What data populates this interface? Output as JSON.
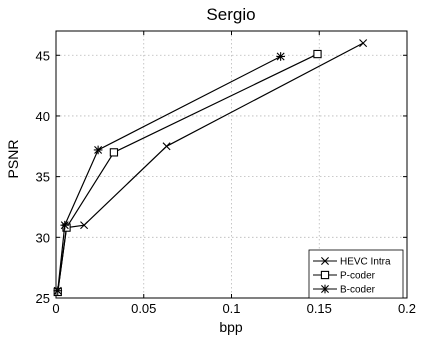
{
  "chart_data": {
    "type": "line",
    "title": "Sergio",
    "xlabel": "bpp",
    "ylabel": "PSNR",
    "xlim": [
      0,
      0.2
    ],
    "ylim": [
      25,
      47
    ],
    "xticks": [
      0,
      0.05,
      0.1,
      0.15,
      0.2
    ],
    "xtick_labels": [
      "0",
      "0.05",
      "0.1",
      "0.15",
      "0.2"
    ],
    "yticks": [
      25,
      30,
      35,
      40,
      45
    ],
    "ytick_labels": [
      "25",
      "30",
      "35",
      "40",
      "45"
    ],
    "grid": true,
    "legend_position": "bottom-right",
    "series": [
      {
        "name": "HEVC Intra",
        "marker": "x",
        "color": "#000000",
        "x": [
          0.001,
          0.006,
          0.016,
          0.063,
          0.175
        ],
        "y": [
          25.5,
          30.8,
          31.0,
          37.5,
          46.0
        ]
      },
      {
        "name": "P-coder",
        "marker": "square",
        "color": "#000000",
        "x": [
          0.001,
          0.006,
          0.033,
          0.149
        ],
        "y": [
          25.5,
          30.8,
          37.0,
          45.1
        ]
      },
      {
        "name": "B-coder",
        "marker": "asterisk",
        "color": "#000000",
        "x": [
          0.001,
          0.005,
          0.024,
          0.128
        ],
        "y": [
          25.6,
          31.0,
          37.2,
          44.9
        ]
      }
    ]
  }
}
